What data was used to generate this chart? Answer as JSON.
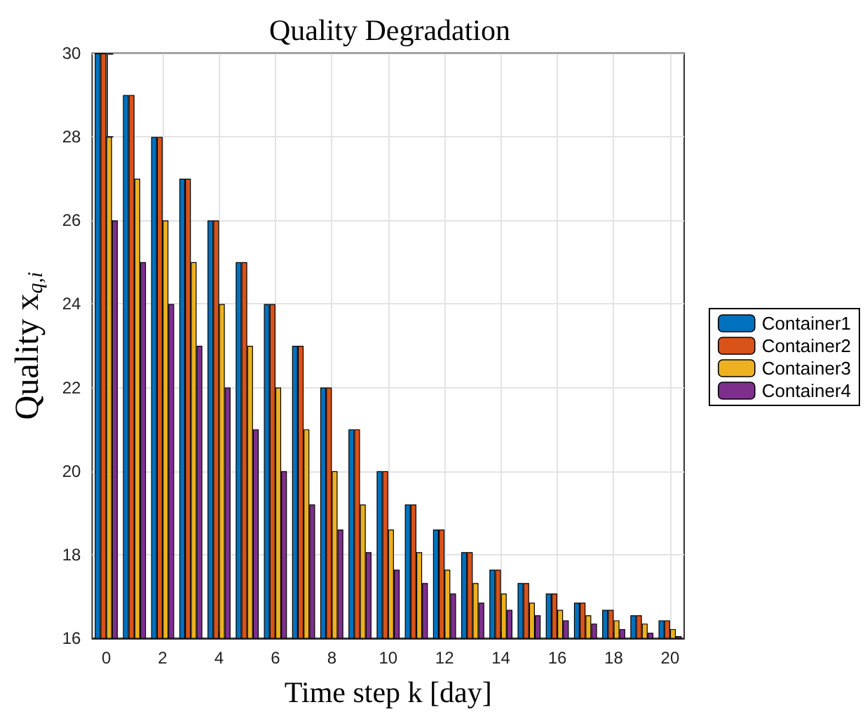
{
  "chart_data": {
    "type": "bar",
    "title": "Quality Degradation",
    "xlabel": "Time step k [day]",
    "ylabel": "Quality x$_{q,i}$",
    "x": [
      0,
      1,
      2,
      3,
      4,
      5,
      6,
      7,
      8,
      9,
      10,
      11,
      12,
      13,
      14,
      15,
      16,
      17,
      18,
      19,
      20
    ],
    "series": [
      {
        "name": "Container1",
        "color": "#0072bd",
        "values": [
          30,
          29,
          28,
          27,
          26,
          25,
          24,
          23,
          22,
          21,
          20,
          19.2,
          18.6,
          18.06,
          17.64,
          17.32,
          17.07,
          16.85,
          16.68,
          16.55,
          16.43
        ]
      },
      {
        "name": "Container2",
        "color": "#d95319",
        "values": [
          30,
          29,
          28,
          27,
          26,
          25,
          24,
          23,
          22,
          21,
          20,
          19.2,
          18.6,
          18.06,
          17.64,
          17.32,
          17.07,
          16.85,
          16.68,
          16.55,
          16.43
        ]
      },
      {
        "name": "Container3",
        "color": "#edb120",
        "values": [
          28,
          27,
          26,
          25,
          24,
          23,
          22,
          21,
          20,
          19.2,
          18.6,
          18.06,
          17.64,
          17.32,
          17.07,
          16.85,
          16.68,
          16.55,
          16.43,
          16.35,
          16.22
        ]
      },
      {
        "name": "Container4",
        "color": "#7e2f8e",
        "values": [
          26,
          25,
          24,
          23,
          22,
          21,
          20,
          19.2,
          18.6,
          18.06,
          17.64,
          17.32,
          17.07,
          16.85,
          16.68,
          16.55,
          16.43,
          16.35,
          16.22,
          16.13,
          16.05
        ]
      }
    ],
    "xlim": [
      -0.5,
      20.5
    ],
    "xticks": [
      0,
      2,
      4,
      6,
      8,
      10,
      12,
      14,
      16,
      18,
      20
    ],
    "ylim": [
      16,
      30
    ],
    "yticks": [
      16,
      18,
      20,
      22,
      24,
      26,
      28,
      30
    ],
    "grid": true,
    "legend": "right"
  }
}
